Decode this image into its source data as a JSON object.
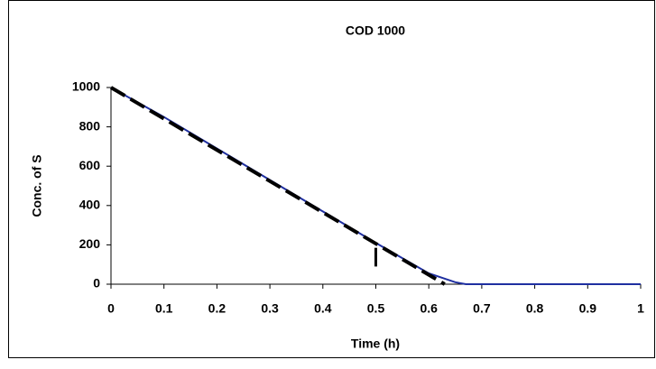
{
  "chart_data": {
    "type": "line",
    "title": "COD 1000",
    "x_label": "Time (h)",
    "y_label": "Conc. of S",
    "xlim": [
      0,
      1
    ],
    "xticks": [
      0,
      0.1,
      0.2,
      0.3,
      0.4,
      0.5,
      0.6,
      0.7,
      0.8,
      0.9,
      1
    ],
    "ylim": [
      0,
      1000
    ],
    "yticks": [
      0,
      200,
      400,
      600,
      800,
      1000
    ],
    "grid": false,
    "series": [
      {
        "color": "#1f2fa0",
        "style": "solid",
        "x": [
          0,
          0.1,
          0.2,
          0.3,
          0.4,
          0.5,
          0.6,
          0.65,
          0.67,
          0.7,
          0.8,
          0.9,
          1
        ],
        "values": [
          1000,
          850,
          690,
          530,
          370,
          210,
          55,
          10,
          0,
          0,
          0,
          0,
          0
        ]
      },
      {
        "color": "#000000",
        "style": "dashed",
        "x": [
          0,
          0.63
        ],
        "values": [
          1000,
          0
        ]
      },
      {
        "color": "#000000",
        "style": "errorbar",
        "x": [
          0.5
        ],
        "values": [
          185
        ],
        "errors": [
          95
        ]
      }
    ]
  }
}
